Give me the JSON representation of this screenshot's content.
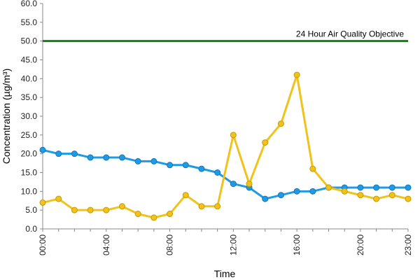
{
  "chart_data": {
    "type": "line",
    "title": "",
    "xlabel": "Time",
    "ylabel": "Concentration (µg/m³)",
    "ylim": [
      0,
      60
    ],
    "y_ticks": [
      "0.0",
      "5.0",
      "10.0",
      "15.0",
      "20.0",
      "25.0",
      "30.0",
      "35.0",
      "40.0",
      "45.0",
      "50.0",
      "55.0",
      "60.0"
    ],
    "x": [
      "00:00",
      "01:00",
      "02:00",
      "03:00",
      "04:00",
      "05:00",
      "06:00",
      "07:00",
      "08:00",
      "09:00",
      "10:00",
      "11:00",
      "12:00",
      "13:00",
      "14:00",
      "15:00",
      "16:00",
      "17:00",
      "18:00",
      "19:00",
      "20:00",
      "21:00",
      "22:00",
      "23:00"
    ],
    "x_tick_labels": [
      "00:00",
      "04:00",
      "08:00",
      "12:00",
      "16:00",
      "20:00",
      "23:00"
    ],
    "grid": false,
    "reference_line": {
      "value": 50,
      "label": "24 Hour Air Quality Objective",
      "color": "#1a7a1a"
    },
    "series": [
      {
        "color": "#1f9be6",
        "values": [
          21,
          20,
          20,
          19,
          19,
          19,
          18,
          18,
          17,
          17,
          16,
          15,
          12,
          11,
          8,
          9,
          10,
          10,
          11,
          11,
          11,
          11,
          11,
          11
        ]
      },
      {
        "color": "#f0c21a",
        "values": [
          7,
          8,
          5,
          5,
          5,
          6,
          4,
          3,
          4,
          9,
          6,
          6,
          25,
          12,
          23,
          28,
          41,
          16,
          11,
          10,
          9,
          8,
          9,
          8
        ]
      }
    ]
  }
}
